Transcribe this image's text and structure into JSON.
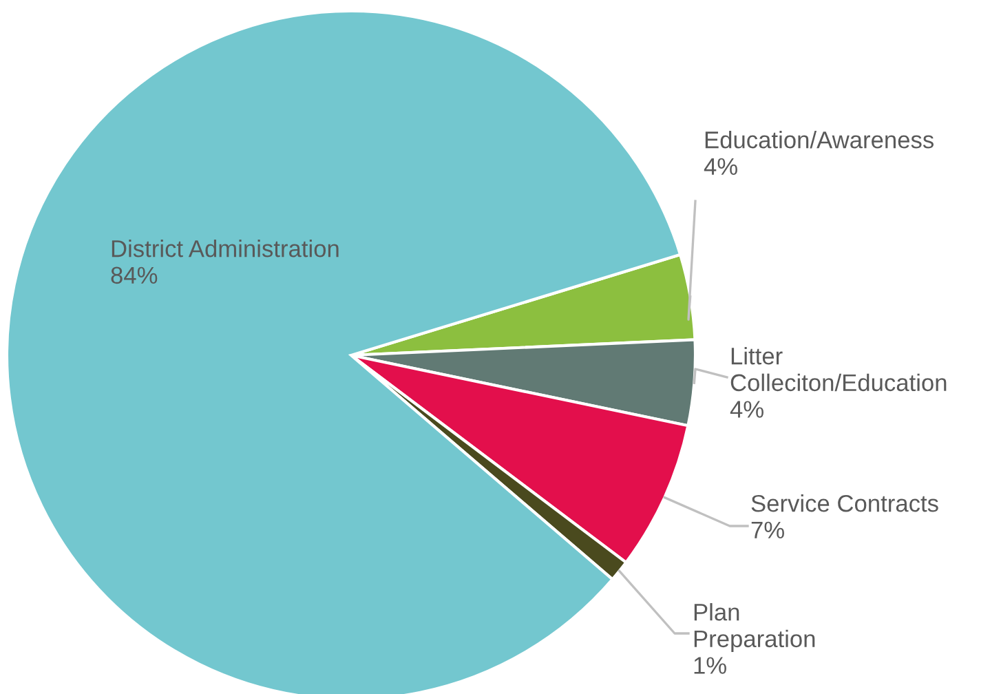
{
  "chart_data": {
    "type": "pie",
    "categories": [
      "Education/Awareness",
      "Litter Colleciton/Education",
      "Service Contracts",
      "Plan Preparation",
      "District Administration"
    ],
    "values": [
      4,
      4,
      7,
      1,
      84
    ],
    "value_labels": [
      "4%",
      "4%",
      "7%",
      "1%",
      "84%"
    ],
    "colors": [
      "#8cbf3f",
      "#617a74",
      "#e30f4c",
      "#4a4a1e",
      "#73c7cf"
    ],
    "legend": false
  }
}
